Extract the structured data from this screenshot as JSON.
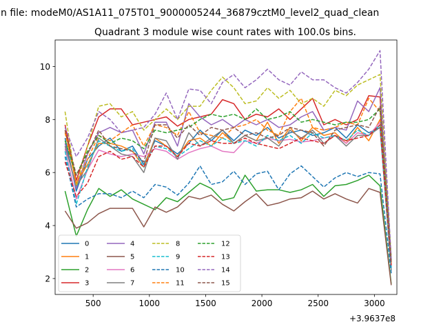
{
  "chart_data": {
    "type": "line",
    "suptitle": "n file: modeM0/AS1A11_075T01_9000005244_36879cztM0_level2_quad_clean",
    "title": "Quadrant 3 module wise count rates with 100.0s bins.",
    "xlabel": "",
    "ylabel": "",
    "offset_label": "+3.9637e8",
    "xlim": [
      162,
      3200
    ],
    "ylim": [
      1.4,
      11.0
    ],
    "xticks": [
      500,
      1000,
      1500,
      2000,
      2500,
      3000
    ],
    "yticks": [
      2,
      4,
      6,
      8,
      10
    ],
    "x": [
      250,
      350,
      450,
      550,
      650,
      750,
      850,
      950,
      1050,
      1150,
      1250,
      1350,
      1450,
      1550,
      1650,
      1750,
      1850,
      1950,
      2050,
      2150,
      2250,
      2350,
      2450,
      2550,
      2650,
      2750,
      2850,
      2950,
      3050,
      3150
    ],
    "series": [
      {
        "name": "0",
        "color": "#1f77b4",
        "dash": "solid",
        "values": [
          7.3,
          5.3,
          6.5,
          7.0,
          7.3,
          6.8,
          7.0,
          6.3,
          7.2,
          7.0,
          6.7,
          7.1,
          7.6,
          7.2,
          7.6,
          7.2,
          7.6,
          7.4,
          7.7,
          7.3,
          7.5,
          7.6,
          7.4,
          7.5,
          7.7,
          7.3,
          7.8,
          7.5,
          7.7,
          2.4
        ]
      },
      {
        "name": "1",
        "color": "#ff7f0e",
        "dash": "solid",
        "values": [
          7.6,
          5.6,
          6.3,
          7.1,
          7.1,
          7.0,
          6.8,
          6.2,
          7.3,
          7.0,
          6.6,
          7.2,
          7.3,
          7.0,
          7.5,
          7.1,
          7.4,
          7.2,
          7.9,
          7.1,
          7.7,
          7.2,
          7.7,
          7.4,
          7.5,
          7.1,
          7.7,
          7.2,
          8.0,
          2.6
        ]
      },
      {
        "name": "2",
        "color": "#2ca02c",
        "dash": "solid",
        "values": [
          5.3,
          3.6,
          4.6,
          5.4,
          5.1,
          5.35,
          5.0,
          4.8,
          4.6,
          5.05,
          4.9,
          5.25,
          5.6,
          5.4,
          4.95,
          5.05,
          5.9,
          5.3,
          5.35,
          5.35,
          5.25,
          5.35,
          5.55,
          5.1,
          5.5,
          5.55,
          5.7,
          5.9,
          5.5,
          1.8
        ]
      },
      {
        "name": "3",
        "color": "#d62728",
        "dash": "solid",
        "values": [
          7.8,
          5.7,
          7.0,
          8.1,
          8.4,
          8.4,
          7.8,
          7.9,
          8.0,
          8.1,
          7.75,
          8.0,
          8.1,
          8.2,
          8.75,
          8.6,
          8.0,
          8.2,
          8.1,
          8.4,
          8.0,
          8.4,
          8.8,
          7.8,
          8.0,
          7.8,
          8.0,
          8.9,
          8.85,
          2.5
        ]
      },
      {
        "name": "4",
        "color": "#9467bd",
        "dash": "solid",
        "values": [
          7.1,
          5.4,
          6.7,
          7.5,
          7.7,
          7.5,
          7.6,
          6.7,
          7.9,
          7.9,
          7.0,
          8.6,
          8.1,
          7.8,
          8.0,
          7.7,
          8.0,
          7.8,
          8.0,
          7.7,
          7.8,
          8.1,
          8.3,
          7.6,
          7.7,
          7.6,
          8.7,
          8.3,
          9.2,
          2.6
        ]
      },
      {
        "name": "5",
        "color": "#8c564b",
        "dash": "solid",
        "values": [
          4.55,
          3.9,
          4.1,
          4.45,
          4.65,
          4.65,
          4.65,
          3.95,
          4.7,
          4.5,
          4.7,
          5.1,
          5.0,
          5.15,
          4.8,
          4.55,
          4.9,
          5.2,
          4.75,
          4.85,
          5.0,
          5.05,
          5.3,
          5.0,
          5.2,
          5.0,
          4.85,
          5.4,
          5.25,
          1.75
        ]
      },
      {
        "name": "6",
        "color": "#e377c2",
        "dash": "solid",
        "values": [
          6.9,
          5.0,
          6.1,
          6.85,
          6.7,
          6.6,
          6.7,
          6.6,
          6.9,
          6.8,
          6.5,
          6.75,
          6.9,
          7.0,
          6.8,
          6.75,
          7.2,
          7.1,
          7.3,
          7.2,
          7.25,
          7.15,
          7.2,
          7.3,
          7.4,
          7.1,
          7.5,
          7.4,
          7.9,
          2.5
        ]
      },
      {
        "name": "7",
        "color": "#7f7f7f",
        "dash": "solid",
        "values": [
          7.0,
          5.5,
          6.1,
          7.3,
          7.0,
          6.7,
          6.6,
          6.0,
          7.3,
          7.2,
          6.5,
          7.5,
          7.0,
          7.3,
          7.6,
          7.1,
          7.4,
          7.2,
          7.3,
          7.0,
          7.6,
          7.3,
          7.6,
          7.1,
          7.4,
          7.0,
          7.4,
          7.4,
          7.7,
          2.3
        ]
      },
      {
        "name": "8",
        "color": "#bcbd22",
        "dash": "dashed",
        "values": [
          8.3,
          5.5,
          7.0,
          8.5,
          8.6,
          8.1,
          8.3,
          7.6,
          8.0,
          8.4,
          8.0,
          8.5,
          8.5,
          9.1,
          9.6,
          9.2,
          8.6,
          8.7,
          9.2,
          8.8,
          9.1,
          8.6,
          8.8,
          8.5,
          9.1,
          8.9,
          9.3,
          9.5,
          9.7,
          2.8
        ]
      },
      {
        "name": "9",
        "color": "#17becf",
        "dash": "dashed",
        "values": [
          6.8,
          4.8,
          6.2,
          7.2,
          7.0,
          6.8,
          6.9,
          6.2,
          7.0,
          6.9,
          6.6,
          6.9,
          7.2,
          7.0,
          7.3,
          7.1,
          7.2,
          7.0,
          7.4,
          7.2,
          7.4,
          7.1,
          7.5,
          7.3,
          7.4,
          7.2,
          7.6,
          7.4,
          7.8,
          2.4
        ]
      },
      {
        "name": "10",
        "color": "#1f77b4",
        "dash": "dashed",
        "values": [
          6.6,
          4.7,
          5.0,
          5.2,
          5.2,
          5.05,
          5.3,
          5.05,
          5.55,
          5.45,
          5.15,
          5.6,
          6.25,
          5.55,
          5.65,
          6.05,
          5.55,
          5.95,
          6.05,
          5.35,
          5.95,
          6.25,
          5.85,
          5.45,
          5.8,
          6.0,
          5.85,
          6.0,
          5.95,
          2.2
        ]
      },
      {
        "name": "11",
        "color": "#ff7f0e",
        "dash": "dashed",
        "values": [
          7.5,
          5.6,
          6.5,
          7.4,
          7.2,
          7.5,
          7.8,
          7.0,
          7.8,
          7.7,
          7.4,
          8.3,
          7.5,
          7.4,
          7.3,
          7.7,
          7.8,
          8.0,
          7.6,
          7.4,
          8.3,
          8.8,
          7.7,
          7.6,
          7.7,
          7.9,
          7.8,
          8.8,
          8.3,
          2.6
        ]
      },
      {
        "name": "12",
        "color": "#2ca02c",
        "dash": "dashed",
        "values": [
          7.2,
          5.9,
          6.8,
          7.4,
          7.1,
          7.3,
          7.2,
          6.9,
          7.6,
          7.5,
          7.6,
          7.7,
          8.0,
          8.2,
          8.1,
          8.2,
          8.0,
          8.4,
          8.0,
          8.1,
          8.3,
          7.9,
          8.0,
          7.9,
          7.8,
          7.9,
          7.9,
          8.0,
          8.4,
          2.7
        ]
      },
      {
        "name": "13",
        "color": "#d62728",
        "dash": "dashed",
        "values": [
          6.4,
          5.1,
          5.6,
          6.6,
          6.8,
          6.5,
          6.6,
          6.2,
          7.0,
          7.0,
          6.6,
          7.1,
          7.0,
          7.2,
          7.1,
          7.1,
          7.3,
          7.1,
          7.0,
          6.9,
          7.1,
          7.3,
          7.2,
          7.1,
          7.4,
          7.2,
          7.3,
          7.4,
          7.8,
          2.5
        ]
      },
      {
        "name": "14",
        "color": "#9467bd",
        "dash": "dashed",
        "values": [
          7.7,
          6.6,
          7.3,
          8.3,
          8.0,
          7.5,
          7.6,
          7.7,
          8.2,
          9.0,
          8.0,
          9.15,
          9.1,
          8.6,
          9.4,
          9.7,
          9.2,
          9.5,
          9.9,
          9.5,
          9.3,
          9.8,
          9.5,
          9.5,
          9.2,
          9.0,
          9.4,
          9.9,
          10.6,
          2.7
        ]
      },
      {
        "name": "15",
        "color": "#8c564b",
        "dash": "dashed",
        "values": [
          7.6,
          5.9,
          6.7,
          7.6,
          7.0,
          6.9,
          6.8,
          6.4,
          7.8,
          7.8,
          7.3,
          7.8,
          7.4,
          7.7,
          7.6,
          7.7,
          7.4,
          7.5,
          7.3,
          7.4,
          7.7,
          7.6,
          7.5,
          7.0,
          7.6,
          7.7,
          7.8,
          7.7,
          8.5,
          2.6
        ]
      }
    ]
  }
}
